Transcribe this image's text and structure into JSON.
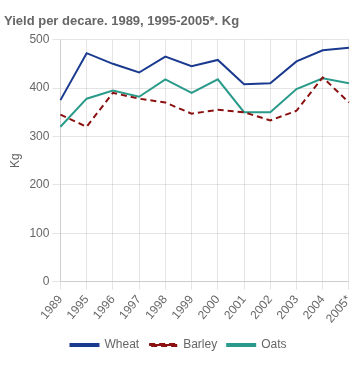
{
  "chart_data": {
    "type": "line",
    "title": "Yield per decare. 1989, 1995-2005*. Kg",
    "ylabel": "Kg",
    "categories": [
      "1989",
      "1995",
      "1996",
      "1997",
      "1998",
      "1999",
      "2000",
      "2001",
      "2002",
      "2003",
      "2004",
      "2005*"
    ],
    "series": [
      {
        "name": "Wheat",
        "color": "#1a3a8f",
        "line_style": "solid",
        "values": [
          375,
          472,
          450,
          432,
          465,
          445,
          458,
          408,
          410,
          455,
          478,
          483
        ]
      },
      {
        "name": "Barley",
        "color": "#8b1010",
        "line_style": "dashed",
        "values": [
          345,
          320,
          390,
          378,
          370,
          347,
          355,
          350,
          333,
          353,
          422,
          370
        ]
      },
      {
        "name": "Oats",
        "color": "#2a9a8a",
        "line_style": "solid",
        "values": [
          320,
          378,
          395,
          382,
          418,
          390,
          418,
          350,
          350,
          398,
          420,
          410
        ]
      }
    ],
    "ylim": [
      0,
      500
    ],
    "yticks": [
      0,
      100,
      200,
      300,
      400,
      500
    ],
    "grid": true,
    "legend": "bottom"
  }
}
